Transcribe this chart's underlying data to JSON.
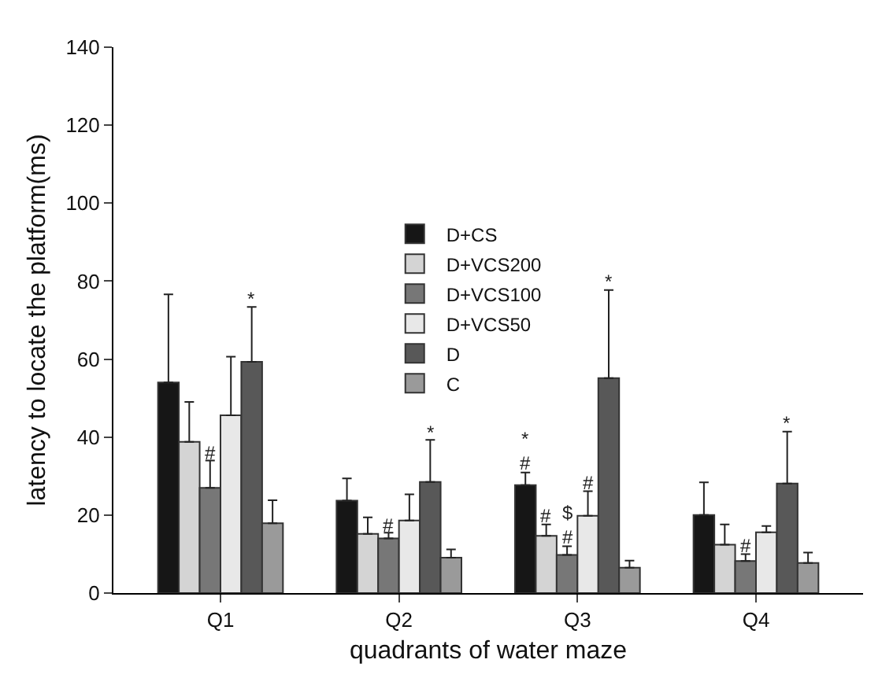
{
  "chart_data": {
    "type": "bar",
    "xlabel": "quadrants of water maze",
    "ylabel": "latency to locate the platform(ms)",
    "categories": [
      "Q1",
      "Q2",
      "Q3",
      "Q4"
    ],
    "annotations": [
      "*"
    ],
    "ylim": [
      0,
      140
    ],
    "yticks": [
      0,
      20,
      40,
      60,
      80,
      100,
      120,
      140
    ],
    "grid": false,
    "legend": "top",
    "series": [
      {
        "name": "D+CS",
        "color": "#161616",
        "values": [
          54,
          23.7,
          27.7,
          20
        ],
        "errors": [
          [
            54,
            76.6
          ],
          [
            23.7,
            29.4
          ],
          [
            27.7,
            30.9
          ],
          [
            20,
            28.4
          ]
        ],
        "value_labels": [
          null,
          null,
          "*\n#",
          null
        ]
      },
      {
        "name": "D+VCS200",
        "color": "#d4d4d4",
        "values": [
          38.8,
          15.2,
          14.7,
          12.4
        ],
        "errors": [
          [
            38.8,
            49
          ],
          [
            15.2,
            19.4
          ],
          [
            14.7,
            17.6
          ],
          [
            12.4,
            17.6
          ]
        ],
        "value_labels": [
          null,
          null,
          "#",
          null
        ]
      },
      {
        "name": "D+VCS100",
        "color": "#777777",
        "values": [
          27,
          14,
          9.8,
          8.2
        ],
        "errors": [
          [
            27,
            34
          ],
          [
            14,
            15.5
          ],
          [
            9.8,
            12
          ],
          [
            8.2,
            10
          ]
        ],
        "value_labels": [
          "#",
          "#",
          "$\n#",
          "#"
        ]
      },
      {
        "name": "D+VCS50",
        "color": "#e8e8e8",
        "values": [
          45.6,
          18.6,
          19.8,
          15.6
        ],
        "errors": [
          [
            45.6,
            60.6
          ],
          [
            18.6,
            25.3
          ],
          [
            19.8,
            26.1
          ],
          [
            15.6,
            17.2
          ]
        ],
        "value_labels": [
          null,
          null,
          "#",
          null
        ]
      },
      {
        "name": "D",
        "color": "#585858",
        "values": [
          59.3,
          28.5,
          55.1,
          28.1
        ],
        "errors": [
          [
            59.3,
            73.4
          ],
          [
            28.5,
            39.3
          ],
          [
            55.1,
            77.7
          ],
          [
            28.1,
            41.4
          ]
        ],
        "value_labels": [
          "*",
          "*",
          null,
          "*"
        ]
      },
      {
        "name": "C",
        "color": "#9a9a9a",
        "values": [
          17.9,
          9.1,
          6.5,
          7.7
        ],
        "errors": [
          [
            17.9,
            23.8
          ],
          [
            9.1,
            11.2
          ],
          [
            6.5,
            8.3
          ],
          [
            7.7,
            10.4
          ]
        ],
        "value_labels": [
          null,
          null,
          null,
          null
        ]
      }
    ]
  }
}
